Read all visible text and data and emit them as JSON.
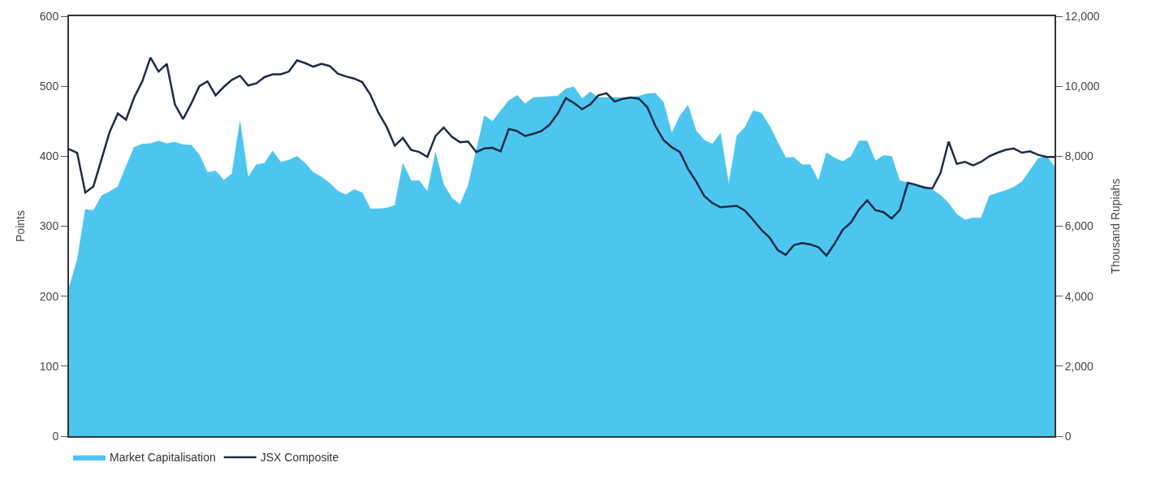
{
  "chart_data": {
    "type": "area",
    "ylabel": "Points",
    "y2label": "Thousand Rupiahs",
    "categories": [
      null,
      null,
      null,
      null,
      null,
      null,
      null,
      null,
      null,
      null,
      null,
      null,
      null,
      null,
      null,
      null,
      null,
      null,
      null,
      null,
      null,
      null,
      null,
      null,
      null,
      null,
      null,
      null,
      null,
      null,
      null,
      null,
      null,
      null,
      null,
      null,
      null,
      null,
      null,
      null,
      null,
      null,
      null,
      null,
      null,
      null,
      null,
      null,
      null,
      null,
      null,
      null,
      null,
      null,
      null,
      null,
      null,
      null,
      null,
      null,
      null,
      null,
      null,
      null,
      null,
      null,
      null,
      null,
      null,
      null,
      null,
      null,
      null,
      null,
      null,
      null,
      null,
      null,
      null,
      null,
      null,
      null,
      null,
      null,
      null,
      null,
      null,
      null,
      null,
      null,
      null,
      null,
      null,
      null,
      null,
      null,
      null,
      null,
      null,
      null,
      null,
      null,
      null,
      null,
      null,
      null,
      null,
      null,
      null,
      null,
      null,
      null,
      null,
      null,
      null,
      null,
      null,
      null,
      null,
      null,
      null,
      null
    ],
    "ylim": [
      0,
      600
    ],
    "yticks": [
      0,
      100,
      200,
      300,
      400,
      500,
      600
    ],
    "y2lim": [
      0,
      12000
    ],
    "y2ticks": [
      {
        "value": 0,
        "label": "0"
      },
      {
        "value": 2000,
        "label": "2,000"
      },
      {
        "value": 4000,
        "label": "4,000"
      },
      {
        "value": 6000,
        "label": "6,000"
      },
      {
        "value": 8000,
        "label": "8,000"
      },
      {
        "value": 10000,
        "label": "10,000"
      },
      {
        "value": 12000,
        "label": "12,000"
      }
    ],
    "legend": "bottom left",
    "series": [
      {
        "name": "Market Capitalisation",
        "axis": "y2",
        "color": "#4cc6ef",
        "values": [
          4240,
          5030,
          6480,
          6450,
          6870,
          6990,
          7130,
          7710,
          8260,
          8350,
          8360,
          8440,
          8360,
          8400,
          8330,
          8320,
          8040,
          7540,
          7580,
          7320,
          7500,
          9000,
          7400,
          7760,
          7800,
          8150,
          7830,
          7890,
          8000,
          7800,
          7540,
          7410,
          7230,
          7010,
          6900,
          7050,
          6960,
          6500,
          6500,
          6520,
          6600,
          7800,
          7300,
          7300,
          6990,
          8120,
          7190,
          6810,
          6620,
          7160,
          8170,
          9160,
          9000,
          9300,
          9590,
          9740,
          9500,
          9680,
          9690,
          9710,
          9720,
          9930,
          9980,
          9650,
          9840,
          9680,
          9680,
          9680,
          9680,
          9690,
          9720,
          9790,
          9800,
          9540,
          8660,
          9150,
          9460,
          8730,
          8460,
          8350,
          8660,
          7200,
          8590,
          8830,
          9300,
          9240,
          8870,
          8410,
          7960,
          7970,
          7760,
          7760,
          7300,
          8100,
          7950,
          7850,
          7990,
          8440,
          8440,
          7870,
          8020,
          8000,
          7300,
          7250,
          7200,
          7150,
          7040,
          6890,
          6660,
          6340,
          6180,
          6240,
          6240,
          6870,
          6950,
          7020,
          7120,
          7270,
          7600,
          7940,
          8010,
          7710
        ]
      },
      {
        "name": "JSX Composite",
        "type": "line",
        "axis": "y",
        "color": "#1e2a47",
        "line_style": "solid",
        "values": [
          410,
          405,
          348,
          357,
          396,
          435,
          461,
          452,
          484,
          507,
          541,
          521,
          532,
          474,
          453,
          475,
          500,
          507,
          487,
          499,
          509,
          515,
          501,
          504,
          513,
          517,
          517,
          521,
          537,
          533,
          528,
          532,
          529,
          518,
          514,
          511,
          506,
          488,
          462,
          442,
          415,
          426,
          409,
          406,
          399,
          429,
          441,
          428,
          420,
          421,
          406,
          411,
          412,
          407,
          439,
          436,
          429,
          432,
          436,
          445,
          461,
          483,
          476,
          467,
          474,
          487,
          490,
          478,
          482,
          484,
          482,
          470,
          443,
          423,
          413,
          406,
          382,
          364,
          343,
          333,
          327,
          328,
          329,
          322,
          309,
          295,
          284,
          266,
          259,
          273,
          276,
          274,
          270,
          258,
          275,
          295,
          305,
          324,
          337,
          323,
          320,
          311,
          323,
          362,
          359,
          355,
          354,
          376,
          421,
          389,
          392,
          387,
          392,
          400,
          405,
          409,
          411,
          405,
          407,
          402,
          399,
          399
        ]
      }
    ]
  }
}
